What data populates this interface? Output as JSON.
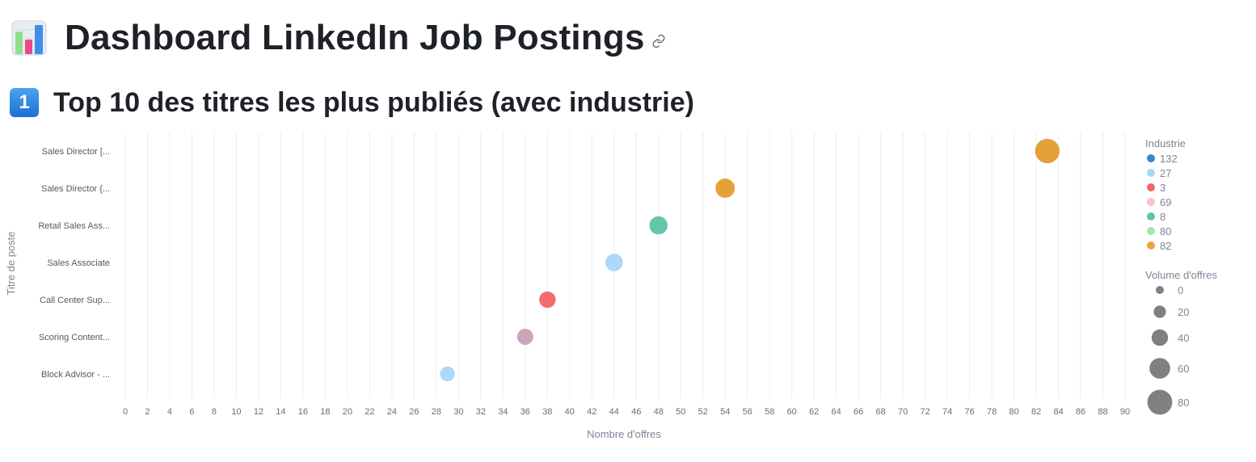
{
  "header": {
    "title": "Dashboard LinkedIn Job Postings",
    "icon": "bar-chart-icon",
    "link_icon": "link-icon"
  },
  "section": {
    "number": "1",
    "title": "Top 10 des titres les plus publiés (avec industrie)"
  },
  "chart_data": {
    "type": "scatter",
    "xlabel": "Nombre d'offres",
    "ylabel": "Titre de poste",
    "xlim": [
      0,
      90
    ],
    "xticks": [
      0,
      2,
      4,
      6,
      8,
      10,
      12,
      14,
      16,
      18,
      20,
      22,
      24,
      26,
      28,
      30,
      32,
      34,
      36,
      38,
      40,
      42,
      44,
      46,
      48,
      50,
      52,
      54,
      56,
      58,
      60,
      62,
      64,
      66,
      68,
      70,
      72,
      74,
      76,
      78,
      80,
      82,
      84,
      86,
      88,
      90
    ],
    "grid": true,
    "categories": [
      "Sales Director [...",
      "Sales Director {...",
      "Retail Sales Ass...",
      "Sales Associate",
      "Call Center Sup...",
      "Scoring Content...",
      "Block Advisor - ..."
    ],
    "points": [
      {
        "title": "Sales Director [...",
        "x": 83,
        "industry": "82",
        "color": "#e49c2e"
      },
      {
        "title": "Sales Director {...",
        "x": 54,
        "industry": "82",
        "color": "#e49c2e"
      },
      {
        "title": "Retail Sales Ass...",
        "x": 48,
        "industry": "8",
        "color": "#5cc2a8"
      },
      {
        "title": "Sales Associate",
        "x": 44,
        "industry": "27",
        "color": "#a6d6fb"
      },
      {
        "title": "Call Center Sup...",
        "x": 38,
        "industry": "3",
        "color": "#f26466"
      },
      {
        "title": "Scoring Content...",
        "x": 36,
        "industry": "69",
        "color": "#c8a0b8"
      },
      {
        "title": "Block Advisor - ...",
        "x": 29,
        "industry": "27",
        "color": "#a6d6fb"
      }
    ],
    "legend": {
      "placement": "right",
      "color_title": "Industrie",
      "color_entries": [
        {
          "label": "132",
          "color": "#3a85cf"
        },
        {
          "label": "27",
          "color": "#a6d6fb"
        },
        {
          "label": "3",
          "color": "#f26466"
        },
        {
          "label": "69",
          "color": "#f8c2c4"
        },
        {
          "label": "8",
          "color": "#5cc2a8"
        },
        {
          "label": "80",
          "color": "#a8e6b0"
        },
        {
          "label": "82",
          "color": "#f2a23a"
        }
      ],
      "size_title": "Volume d'offres",
      "size_entries": [
        {
          "label": "0",
          "value": 0
        },
        {
          "label": "20",
          "value": 20
        },
        {
          "label": "40",
          "value": 40
        },
        {
          "label": "60",
          "value": 60
        },
        {
          "label": "80",
          "value": 80
        }
      ]
    }
  }
}
